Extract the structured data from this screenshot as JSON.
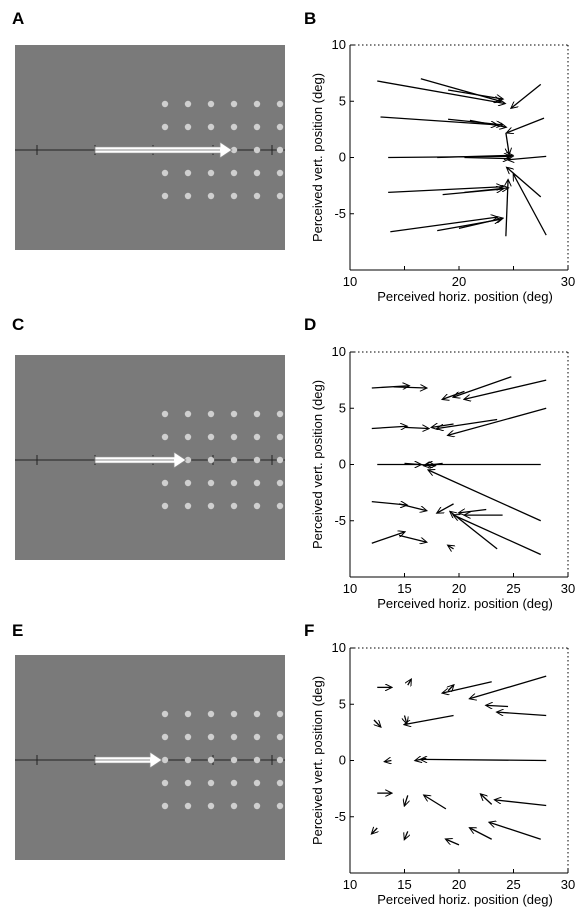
{
  "panel_letters": {
    "A": "A",
    "B": "B",
    "C": "C",
    "D": "D",
    "E": "E",
    "F": "F"
  },
  "colors": {
    "stimulus_background": "#7a7a7a",
    "dot": "#cfcfcf",
    "arrow": "#000000",
    "motion_arrow": "#ffffff"
  },
  "stimuli": [
    {
      "panel": "A",
      "motion_arrow_length": "long"
    },
    {
      "panel": "C",
      "motion_arrow_length": "medium"
    },
    {
      "panel": "E",
      "motion_arrow_length": "short"
    }
  ],
  "chart_data": [
    {
      "panel": "B",
      "type": "vector-field",
      "xlabel": "Perceived horiz. position (deg)",
      "ylabel": "Perceived vert. position (deg)",
      "xlim": [
        10,
        30
      ],
      "ylim": [
        -10,
        10
      ],
      "xticks": [
        10,
        15,
        20,
        25,
        30
      ],
      "xtick_labels": [
        "10",
        "",
        "20",
        "",
        "30"
      ],
      "yticks": [
        10,
        5,
        0,
        -5,
        -10
      ],
      "ytick_labels": [
        "10",
        "5",
        "0",
        "-5",
        ""
      ],
      "vectors": [
        {
          "x0": 12.5,
          "y0": 6.8,
          "x1": 24.2,
          "y1": 4.8
        },
        {
          "x0": 16.5,
          "y0": 7.0,
          "x1": 23.8,
          "y1": 5.0
        },
        {
          "x0": 19.0,
          "y0": 6.0,
          "x1": 24.0,
          "y1": 5.2
        },
        {
          "x0": 27.5,
          "y0": 6.5,
          "x1": 24.8,
          "y1": 4.4
        },
        {
          "x0": 12.8,
          "y0": 3.6,
          "x1": 23.5,
          "y1": 2.9
        },
        {
          "x0": 19.0,
          "y0": 3.4,
          "x1": 24.0,
          "y1": 2.9
        },
        {
          "x0": 21.0,
          "y0": 3.3,
          "x1": 24.3,
          "y1": 2.7
        },
        {
          "x0": 27.8,
          "y0": 3.5,
          "x1": 24.4,
          "y1": 2.2
        },
        {
          "x0": 13.5,
          "y0": 0.0,
          "x1": 24.7,
          "y1": 0.1
        },
        {
          "x0": 18.0,
          "y0": 0.0,
          "x1": 24.9,
          "y1": 0.2
        },
        {
          "x0": 20.5,
          "y0": 0.0,
          "x1": 24.6,
          "y1": -0.1
        },
        {
          "x0": 28.0,
          "y0": 0.1,
          "x1": 24.5,
          "y1": -0.2
        },
        {
          "x0": 24.3,
          "y0": 2.2,
          "x1": 24.6,
          "y1": 0.3
        },
        {
          "x0": 13.5,
          "y0": -3.1,
          "x1": 24.0,
          "y1": -2.6
        },
        {
          "x0": 18.5,
          "y0": -3.3,
          "x1": 24.0,
          "y1": -2.8
        },
        {
          "x0": 20.5,
          "y0": -3.1,
          "x1": 24.5,
          "y1": -2.7
        },
        {
          "x0": 27.5,
          "y0": -3.5,
          "x1": 24.4,
          "y1": -0.9
        },
        {
          "x0": 13.7,
          "y0": -6.6,
          "x1": 23.5,
          "y1": -5.3
        },
        {
          "x0": 18.0,
          "y0": -6.5,
          "x1": 23.8,
          "y1": -5.5
        },
        {
          "x0": 20.0,
          "y0": -6.3,
          "x1": 24.0,
          "y1": -5.4
        },
        {
          "x0": 24.3,
          "y0": -7.0,
          "x1": 24.5,
          "y1": -2.0
        },
        {
          "x0": 28.0,
          "y0": -6.9,
          "x1": 25.0,
          "y1": -1.5
        }
      ]
    },
    {
      "panel": "D",
      "type": "vector-field",
      "xlabel": "Perceived horiz. position (deg)",
      "ylabel": "Perceived vert. position (deg)",
      "xlim": [
        10,
        30
      ],
      "ylim": [
        -10,
        10
      ],
      "xticks": [
        10,
        15,
        20,
        25,
        30
      ],
      "xtick_labels": [
        "10",
        "15",
        "20",
        "25",
        "30"
      ],
      "yticks": [
        10,
        5,
        0,
        -5,
        -10
      ],
      "ytick_labels": [
        "10",
        "5",
        "0",
        "-5",
        ""
      ],
      "vectors": [
        {
          "x0": 12.0,
          "y0": 6.8,
          "x1": 15.4,
          "y1": 7.0
        },
        {
          "x0": 14.0,
          "y0": 6.9,
          "x1": 17.0,
          "y1": 6.8
        },
        {
          "x0": 20.5,
          "y0": 6.5,
          "x1": 18.5,
          "y1": 5.8
        },
        {
          "x0": 24.8,
          "y0": 7.8,
          "x1": 19.5,
          "y1": 6.0
        },
        {
          "x0": 28.0,
          "y0": 7.5,
          "x1": 20.5,
          "y1": 5.8
        },
        {
          "x0": 12.0,
          "y0": 3.2,
          "x1": 15.2,
          "y1": 3.4
        },
        {
          "x0": 15.0,
          "y0": 3.3,
          "x1": 17.2,
          "y1": 3.2
        },
        {
          "x0": 19.5,
          "y0": 3.6,
          "x1": 17.5,
          "y1": 3.3
        },
        {
          "x0": 23.5,
          "y0": 4.0,
          "x1": 18.0,
          "y1": 3.2
        },
        {
          "x0": 28.0,
          "y0": 5.0,
          "x1": 19.0,
          "y1": 2.6
        },
        {
          "x0": 12.5,
          "y0": 0.0,
          "x1": 16.5,
          "y1": 0.0
        },
        {
          "x0": 15.0,
          "y0": 0.1,
          "x1": 17.8,
          "y1": -0.1
        },
        {
          "x0": 18.5,
          "y0": 0.1,
          "x1": 16.8,
          "y1": -0.1
        },
        {
          "x0": 27.5,
          "y0": 0.0,
          "x1": 17.0,
          "y1": 0.0
        },
        {
          "x0": 27.5,
          "y0": -5.0,
          "x1": 17.2,
          "y1": -0.5
        },
        {
          "x0": 12.0,
          "y0": -3.3,
          "x1": 15.2,
          "y1": -3.6
        },
        {
          "x0": 14.5,
          "y0": -3.5,
          "x1": 17.0,
          "y1": -4.1
        },
        {
          "x0": 19.5,
          "y0": -3.5,
          "x1": 18.0,
          "y1": -4.3
        },
        {
          "x0": 22.5,
          "y0": -4.0,
          "x1": 20.0,
          "y1": -4.3
        },
        {
          "x0": 24.0,
          "y0": -4.5,
          "x1": 20.5,
          "y1": -4.5
        },
        {
          "x0": 12.0,
          "y0": -7.0,
          "x1": 15.0,
          "y1": -6.0
        },
        {
          "x0": 14.5,
          "y0": -6.3,
          "x1": 17.0,
          "y1": -6.9
        },
        {
          "x0": 19.5,
          "y0": -7.5,
          "x1": 19.0,
          "y1": -7.2
        },
        {
          "x0": 27.5,
          "y0": -8.0,
          "x1": 19.5,
          "y1": -4.5
        },
        {
          "x0": 23.5,
          "y0": -7.5,
          "x1": 19.2,
          "y1": -4.2
        }
      ]
    },
    {
      "panel": "F",
      "type": "vector-field",
      "xlabel": "Perceived horiz. position (deg)",
      "ylabel": "Perceived vert. position (deg)",
      "xlim": [
        10,
        30
      ],
      "ylim": [
        -10,
        10
      ],
      "xticks": [
        10,
        15,
        20,
        25,
        30
      ],
      "xtick_labels": [
        "10",
        "15",
        "20",
        "25",
        "30"
      ],
      "yticks": [
        10,
        5,
        0,
        -5,
        -10
      ],
      "ytick_labels": [
        "10",
        "5",
        "0",
        "-5",
        ""
      ],
      "vectors": [
        {
          "x0": 12.5,
          "y0": 6.5,
          "x1": 13.8,
          "y1": 6.5
        },
        {
          "x0": 15.3,
          "y0": 6.7,
          "x1": 15.6,
          "y1": 7.2
        },
        {
          "x0": 19.0,
          "y0": 6.2,
          "x1": 19.5,
          "y1": 6.7
        },
        {
          "x0": 23.0,
          "y0": 7.0,
          "x1": 18.5,
          "y1": 6.0
        },
        {
          "x0": 28.0,
          "y0": 7.5,
          "x1": 21.0,
          "y1": 5.5
        },
        {
          "x0": 12.2,
          "y0": 3.6,
          "x1": 12.8,
          "y1": 3.0
        },
        {
          "x0": 15.0,
          "y0": 4.0,
          "x1": 15.2,
          "y1": 3.3
        },
        {
          "x0": 19.5,
          "y0": 4.0,
          "x1": 15.0,
          "y1": 3.2
        },
        {
          "x0": 24.5,
          "y0": 4.8,
          "x1": 22.5,
          "y1": 4.9
        },
        {
          "x0": 28.0,
          "y0": 4.0,
          "x1": 23.5,
          "y1": 4.3
        },
        {
          "x0": 13.8,
          "y0": 0.0,
          "x1": 13.2,
          "y1": -0.1
        },
        {
          "x0": 17.0,
          "y0": 0.2,
          "x1": 16.0,
          "y1": 0.0
        },
        {
          "x0": 28.0,
          "y0": 0.0,
          "x1": 16.5,
          "y1": 0.1
        },
        {
          "x0": 12.5,
          "y0": -2.9,
          "x1": 13.8,
          "y1": -2.9
        },
        {
          "x0": 15.3,
          "y0": -3.1,
          "x1": 15.0,
          "y1": -4.0
        },
        {
          "x0": 18.8,
          "y0": -4.3,
          "x1": 16.8,
          "y1": -3.1
        },
        {
          "x0": 23.0,
          "y0": -3.9,
          "x1": 22.0,
          "y1": -3.0
        },
        {
          "x0": 28.0,
          "y0": -4.0,
          "x1": 23.3,
          "y1": -3.5
        },
        {
          "x0": 12.5,
          "y0": -6.0,
          "x1": 12.0,
          "y1": -6.5
        },
        {
          "x0": 15.3,
          "y0": -6.3,
          "x1": 15.0,
          "y1": -7.0
        },
        {
          "x0": 20.0,
          "y0": -7.5,
          "x1": 18.8,
          "y1": -7.0
        },
        {
          "x0": 23.0,
          "y0": -7.0,
          "x1": 21.0,
          "y1": -6.0
        },
        {
          "x0": 27.5,
          "y0": -7.0,
          "x1": 22.8,
          "y1": -5.5
        }
      ]
    }
  ]
}
